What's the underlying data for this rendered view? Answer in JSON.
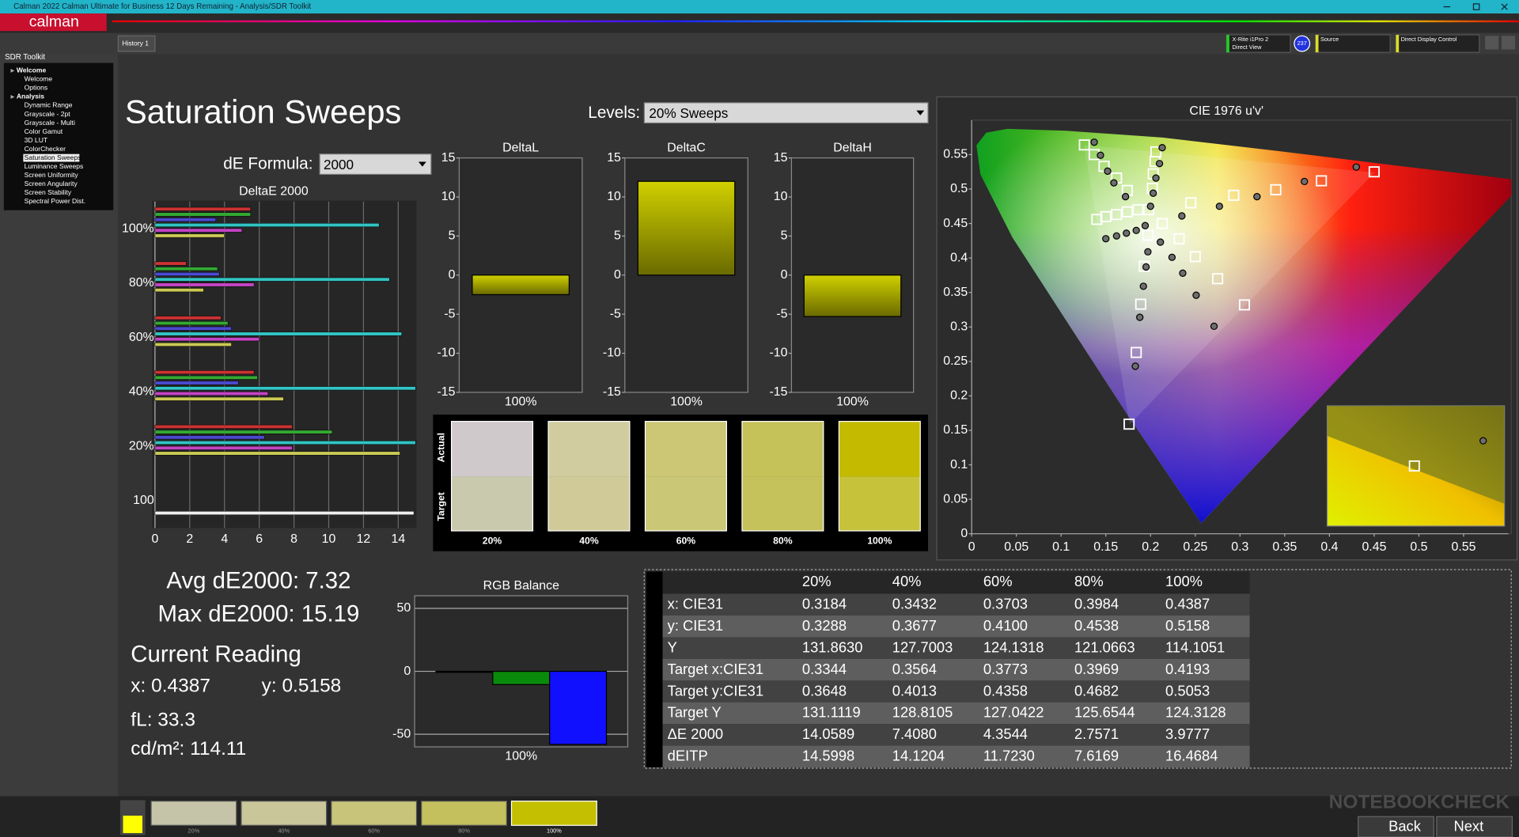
{
  "window": {
    "title": "Calman 2022 Calman Ultimate for Business 12 Days Remaining  - Analysis/SDR Toolkit",
    "logo": "calman"
  },
  "tabs": [
    "History 1"
  ],
  "toolbar": {
    "meter": "X-Rite i1Pro 2",
    "meter_mode": "Direct View",
    "meter_badge": "237",
    "source": "Source",
    "display": "Direct Display Control"
  },
  "sidebar": {
    "title": "SDR Toolkit",
    "items": [
      {
        "label": "Welcome",
        "group": true
      },
      {
        "label": "Welcome"
      },
      {
        "label": "Options"
      },
      {
        "label": "Analysis",
        "group": true
      },
      {
        "label": "Dynamic Range"
      },
      {
        "label": "Grayscale - 2pt"
      },
      {
        "label": "Grayscale - Multi"
      },
      {
        "label": "Color Gamut"
      },
      {
        "label": "3D LUT"
      },
      {
        "label": "ColorChecker"
      },
      {
        "label": "Saturation Sweeps",
        "selected": true
      },
      {
        "label": "Luminance Sweeps"
      },
      {
        "label": "Screen Uniformity"
      },
      {
        "label": "Screen Angularity"
      },
      {
        "label": "Screen Stability"
      },
      {
        "label": "Spectral Power Dist."
      }
    ]
  },
  "page": {
    "title": "Saturation Sweeps",
    "levels_label": "Levels:",
    "levels_value": "20% Sweeps",
    "formula_label": "dE Formula:",
    "formula_value": "2000"
  },
  "stats": {
    "avg": "Avg dE2000: 7.32",
    "max": "Max dE2000: 15.19",
    "reading_title": "Current Reading",
    "x": "x: 0.4387",
    "y": "y: 0.5158",
    "fl": "fL: 33.3",
    "cd": "cd/m²: 114.11"
  },
  "swatches": {
    "actual_label": "Actual",
    "target_label": "Target",
    "levels": [
      {
        "label": "20%",
        "actual": "#cfc9cc",
        "target": "#c9c9ad"
      },
      {
        "label": "40%",
        "actual": "#d0cc9f",
        "target": "#cfca98"
      },
      {
        "label": "60%",
        "actual": "#cbc775",
        "target": "#cac777"
      },
      {
        "label": "80%",
        "actual": "#c6c25a",
        "target": "#c5c25c"
      },
      {
        "label": "100%",
        "actual": "#c4bb00",
        "target": "#c6c23a"
      }
    ]
  },
  "chart_data": [
    {
      "type": "bar",
      "orientation": "horizontal",
      "title": "DeltaE 2000",
      "grid": true,
      "categories": [
        "100%",
        "80%",
        "60%",
        "40%",
        "20%",
        "100"
      ],
      "series": [
        {
          "color": "#cc3333",
          "values": [
            5.5,
            1.8,
            3.8,
            5.7,
            7.9,
            null
          ]
        },
        {
          "color": "#33aa33",
          "values": [
            5.5,
            3.6,
            4.2,
            5.9,
            10.2,
            null
          ]
        },
        {
          "color": "#4a4ad0",
          "values": [
            3.5,
            3.7,
            4.4,
            4.8,
            6.3,
            null
          ]
        },
        {
          "color": "#33c4c4",
          "values": [
            12.9,
            13.5,
            14.2,
            15,
            15,
            null
          ]
        },
        {
          "color": "#c444c4",
          "values": [
            5.0,
            5.7,
            6.0,
            6.5,
            7.9,
            null
          ]
        },
        {
          "color": "#caca55",
          "values": [
            4.0,
            2.8,
            4.4,
            7.4,
            14.1,
            null
          ]
        },
        {
          "color": "#f0f0f0",
          "values": [
            null,
            null,
            null,
            null,
            null,
            14.9
          ]
        }
      ],
      "xlim": [
        0,
        15
      ],
      "xticks": [
        0,
        2,
        4,
        6,
        8,
        10,
        12,
        14
      ]
    },
    {
      "type": "bar",
      "title": "DeltaL",
      "categories": [
        "100%"
      ],
      "values": [
        -2.5
      ],
      "color": "#c8c800",
      "ylim": [
        -15,
        15
      ],
      "yticks": [
        -15,
        -10,
        -5,
        0,
        5,
        10,
        15
      ],
      "grid": false
    },
    {
      "type": "bar",
      "title": "DeltaC",
      "categories": [
        "100%"
      ],
      "values": [
        12.0
      ],
      "color": "#c8c800",
      "ylim": [
        -15,
        15
      ],
      "yticks": [
        -15,
        -10,
        -5,
        0,
        5,
        10,
        15
      ],
      "grid": false
    },
    {
      "type": "bar",
      "title": "DeltaH",
      "categories": [
        "100%"
      ],
      "values": [
        -5.3
      ],
      "color": "#c8c800",
      "ylim": [
        -15,
        15
      ],
      "yticks": [
        -15,
        -10,
        -5,
        0,
        5,
        10,
        15
      ],
      "grid": false
    },
    {
      "type": "bar",
      "title": "RGB Balance",
      "categories": [
        "100%"
      ],
      "series": [
        {
          "color": "#dd0000",
          "values": [
            -0.5
          ]
        },
        {
          "color": "#0a8a0a",
          "values": [
            -10.5
          ]
        },
        {
          "color": "#1010ff",
          "values": [
            -58
          ]
        }
      ],
      "ylim": [
        -60,
        60
      ],
      "yticks": [
        -50,
        0,
        50
      ],
      "grid": true
    },
    {
      "type": "scatter",
      "title": "CIE 1976 u'v'",
      "xlim": [
        0,
        0.6
      ],
      "ylim": [
        0,
        0.6
      ],
      "xticks": [
        0,
        0.05,
        0.1,
        0.15,
        0.2,
        0.25,
        0.3,
        0.35,
        0.4,
        0.45,
        0.5,
        0.55
      ],
      "yticks": [
        0,
        0.05,
        0.1,
        0.15,
        0.2,
        0.25,
        0.3,
        0.35,
        0.4,
        0.45,
        0.5,
        0.55
      ],
      "series": [
        {
          "marker": "square",
          "color": "#ffffff",
          "x": [
            0.126,
            0.137,
            0.148,
            0.162,
            0.174,
            0.45,
            0.391,
            0.34,
            0.293,
            0.245,
            0.176,
            0.184,
            0.189,
            0.193,
            0.197,
            0.14,
            0.15,
            0.162,
            0.174,
            0.186,
            0.305,
            0.275,
            0.25,
            0.232,
            0.213,
            0.206,
            0.205,
            0.203,
            0.202,
            0.198
          ],
          "values": [
            0.564,
            0.55,
            0.533,
            0.516,
            0.498,
            0.525,
            0.512,
            0.499,
            0.491,
            0.48,
            0.159,
            0.263,
            0.333,
            0.388,
            0.433,
            0.456,
            0.46,
            0.463,
            0.467,
            0.47,
            0.332,
            0.37,
            0.402,
            0.428,
            0.45,
            0.554,
            0.54,
            0.522,
            0.501,
            0.47
          ]
        },
        {
          "marker": "circle",
          "color": "#6e6e6e",
          "x": [
            0.137,
            0.144,
            0.152,
            0.159,
            0.172,
            0.43,
            0.372,
            0.319,
            0.277,
            0.235,
            0.183,
            0.188,
            0.192,
            0.195,
            0.197,
            0.15,
            0.162,
            0.173,
            0.184,
            0.194,
            0.271,
            0.251,
            0.236,
            0.224,
            0.211,
            0.213,
            0.21,
            0.206,
            0.203,
            0.2
          ],
          "values": [
            0.568,
            0.549,
            0.526,
            0.509,
            0.489,
            0.532,
            0.511,
            0.489,
            0.475,
            0.461,
            0.243,
            0.314,
            0.359,
            0.387,
            0.409,
            0.428,
            0.432,
            0.436,
            0.44,
            0.447,
            0.301,
            0.346,
            0.378,
            0.401,
            0.423,
            0.56,
            0.537,
            0.516,
            0.494,
            0.475
          ]
        }
      ]
    }
  ],
  "table": {
    "header": [
      "20%",
      "40%",
      "60%",
      "80%",
      "100%"
    ],
    "rows": [
      [
        "x: CIE31",
        "0.3184",
        "0.3432",
        "0.3703",
        "0.3984",
        "0.4387"
      ],
      [
        "y: CIE31",
        "0.3288",
        "0.3677",
        "0.4100",
        "0.4538",
        "0.5158"
      ],
      [
        "Y",
        "131.8630",
        "127.7003",
        "124.1318",
        "121.0663",
        "114.1051"
      ],
      [
        "Target x:CIE31",
        "0.3344",
        "0.3564",
        "0.3773",
        "0.3969",
        "0.4193"
      ],
      [
        "Target y:CIE31",
        "0.3648",
        "0.4013",
        "0.4358",
        "0.4682",
        "0.5053"
      ],
      [
        "Target Y",
        "131.1119",
        "128.8105",
        "127.0422",
        "125.6544",
        "124.3128"
      ],
      [
        "ΔE 2000",
        "14.0589",
        "7.4080",
        "4.3544",
        "2.7571",
        "3.9777"
      ],
      [
        "dEITP",
        "14.5998",
        "14.1204",
        "11.7230",
        "7.6169",
        "16.4684"
      ]
    ]
  },
  "footer": {
    "thumbnails": [
      {
        "label": "20%",
        "color": "#c5c4a9"
      },
      {
        "label": "40%",
        "color": "#c9c69a"
      },
      {
        "label": "60%",
        "color": "#c8c57a"
      },
      {
        "label": "80%",
        "color": "#c3c05d"
      },
      {
        "label": "100%",
        "color": "#c4bf00"
      }
    ],
    "back": "Back",
    "next": "Next",
    "watermark": "NOTEBOOKCHECK"
  }
}
